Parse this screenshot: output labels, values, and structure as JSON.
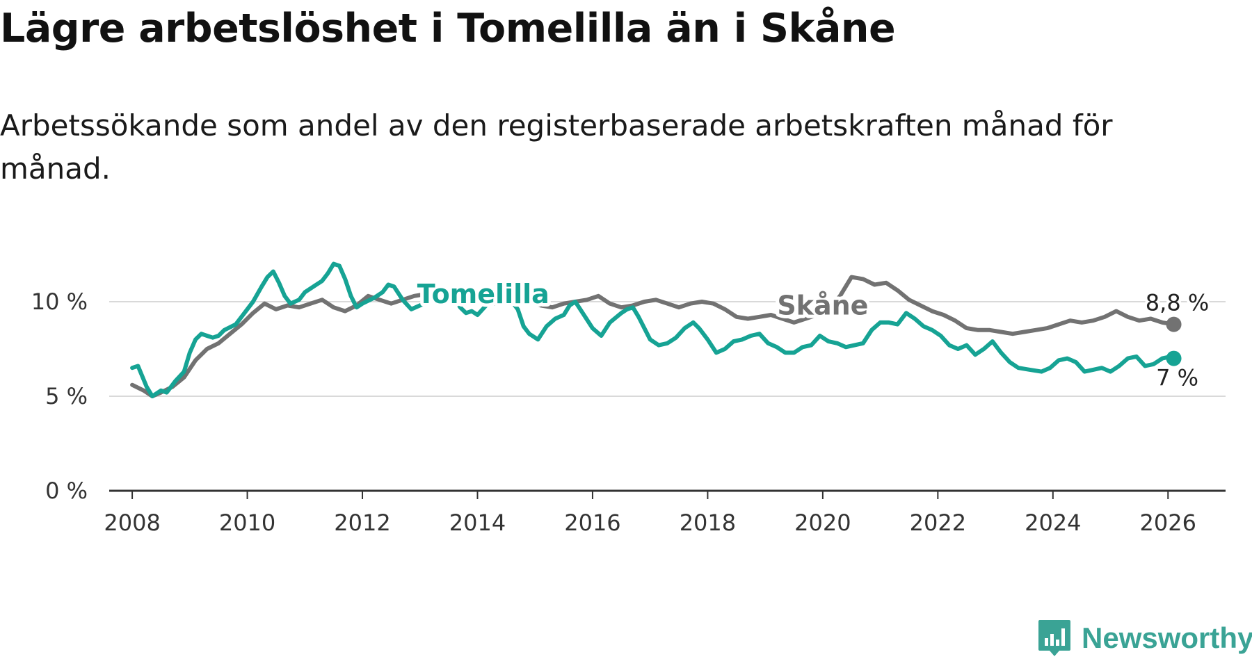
{
  "title": "Lägre arbetslöshet i Tomelilla än i Skåne",
  "subtitle": "Arbetssökande som andel av den registerbaserade arbetskraften månad för månad.",
  "brand": {
    "name": "Newsworthy",
    "color": "#3aa395"
  },
  "chart_data": {
    "type": "line",
    "title": "Lägre arbetslöshet i Tomelilla än i Skåne",
    "xlabel": "",
    "ylabel": "",
    "xlim": [
      2007.6,
      2027.0
    ],
    "ylim": [
      0,
      10
    ],
    "x_ticks": [
      2008,
      2010,
      2012,
      2014,
      2016,
      2018,
      2020,
      2022,
      2024,
      2026
    ],
    "x_tick_labels": [
      "2008",
      "2010",
      "2012",
      "2014",
      "2016",
      "2018",
      "2020",
      "2022",
      "2024",
      "2026"
    ],
    "y_ticks": [
      0,
      5,
      10
    ],
    "y_tick_labels": [
      "0 %",
      "5 %",
      "10 %"
    ],
    "series": [
      {
        "name": "Skåne",
        "label": "Skåne",
        "color": "#727272",
        "end_label": "8,8 %",
        "points": [
          [
            2008.0,
            5.6
          ],
          [
            2008.2,
            5.3
          ],
          [
            2008.35,
            5.0
          ],
          [
            2008.5,
            5.2
          ],
          [
            2008.7,
            5.5
          ],
          [
            2008.9,
            6.0
          ],
          [
            2009.1,
            6.9
          ],
          [
            2009.3,
            7.5
          ],
          [
            2009.5,
            7.8
          ],
          [
            2009.7,
            8.3
          ],
          [
            2009.9,
            8.8
          ],
          [
            2010.1,
            9.4
          ],
          [
            2010.3,
            9.9
          ],
          [
            2010.5,
            9.6
          ],
          [
            2010.7,
            9.8
          ],
          [
            2010.9,
            9.7
          ],
          [
            2011.1,
            9.9
          ],
          [
            2011.3,
            10.1
          ],
          [
            2011.5,
            9.7
          ],
          [
            2011.7,
            9.5
          ],
          [
            2011.9,
            9.8
          ],
          [
            2012.1,
            10.3
          ],
          [
            2012.3,
            10.1
          ],
          [
            2012.5,
            9.9
          ],
          [
            2012.7,
            10.1
          ],
          [
            2012.9,
            10.3
          ],
          [
            2013.1,
            10.4
          ],
          [
            2013.3,
            10.2
          ],
          [
            2013.5,
            10.0
          ],
          [
            2013.7,
            10.2
          ],
          [
            2013.9,
            10.3
          ],
          [
            2014.1,
            10.1
          ],
          [
            2014.3,
            9.9
          ],
          [
            2014.5,
            10.0
          ],
          [
            2014.7,
            10.2
          ],
          [
            2014.9,
            10.0
          ],
          [
            2015.1,
            9.8
          ],
          [
            2015.3,
            9.7
          ],
          [
            2015.5,
            9.9
          ],
          [
            2015.7,
            10.0
          ],
          [
            2015.9,
            10.1
          ],
          [
            2016.1,
            10.3
          ],
          [
            2016.3,
            9.9
          ],
          [
            2016.5,
            9.7
          ],
          [
            2016.7,
            9.8
          ],
          [
            2016.9,
            10.0
          ],
          [
            2017.1,
            10.1
          ],
          [
            2017.3,
            9.9
          ],
          [
            2017.5,
            9.7
          ],
          [
            2017.7,
            9.9
          ],
          [
            2017.9,
            10.0
          ],
          [
            2018.1,
            9.9
          ],
          [
            2018.3,
            9.6
          ],
          [
            2018.5,
            9.2
          ],
          [
            2018.7,
            9.1
          ],
          [
            2018.9,
            9.2
          ],
          [
            2019.1,
            9.3
          ],
          [
            2019.3,
            9.1
          ],
          [
            2019.5,
            8.9
          ],
          [
            2019.7,
            9.1
          ],
          [
            2019.9,
            9.3
          ],
          [
            2020.1,
            9.6
          ],
          [
            2020.3,
            10.3
          ],
          [
            2020.5,
            11.3
          ],
          [
            2020.7,
            11.2
          ],
          [
            2020.9,
            10.9
          ],
          [
            2021.1,
            11.0
          ],
          [
            2021.3,
            10.6
          ],
          [
            2021.5,
            10.1
          ],
          [
            2021.7,
            9.8
          ],
          [
            2021.9,
            9.5
          ],
          [
            2022.1,
            9.3
          ],
          [
            2022.3,
            9.0
          ],
          [
            2022.5,
            8.6
          ],
          [
            2022.7,
            8.5
          ],
          [
            2022.9,
            8.5
          ],
          [
            2023.1,
            8.4
          ],
          [
            2023.3,
            8.3
          ],
          [
            2023.5,
            8.4
          ],
          [
            2023.7,
            8.5
          ],
          [
            2023.9,
            8.6
          ],
          [
            2024.1,
            8.8
          ],
          [
            2024.3,
            9.0
          ],
          [
            2024.5,
            8.9
          ],
          [
            2024.7,
            9.0
          ],
          [
            2024.9,
            9.2
          ],
          [
            2025.1,
            9.5
          ],
          [
            2025.3,
            9.2
          ],
          [
            2025.5,
            9.0
          ],
          [
            2025.7,
            9.1
          ],
          [
            2025.9,
            8.9
          ],
          [
            2026.1,
            8.8
          ]
        ]
      },
      {
        "name": "Tomelilla",
        "label": "Tomelilla",
        "color": "#16a394",
        "end_label": "7 %",
        "points": [
          [
            2008.0,
            6.5
          ],
          [
            2008.1,
            6.6
          ],
          [
            2008.25,
            5.5
          ],
          [
            2008.35,
            5.0
          ],
          [
            2008.5,
            5.3
          ],
          [
            2008.6,
            5.2
          ],
          [
            2008.75,
            5.8
          ],
          [
            2008.9,
            6.3
          ],
          [
            2009.0,
            7.3
          ],
          [
            2009.1,
            8.0
          ],
          [
            2009.2,
            8.3
          ],
          [
            2009.3,
            8.2
          ],
          [
            2009.4,
            8.1
          ],
          [
            2009.5,
            8.2
          ],
          [
            2009.6,
            8.5
          ],
          [
            2009.8,
            8.8
          ],
          [
            2009.95,
            9.4
          ],
          [
            2010.1,
            10.0
          ],
          [
            2010.25,
            10.8
          ],
          [
            2010.35,
            11.3
          ],
          [
            2010.45,
            11.6
          ],
          [
            2010.55,
            11.0
          ],
          [
            2010.65,
            10.3
          ],
          [
            2010.75,
            9.9
          ],
          [
            2010.9,
            10.1
          ],
          [
            2011.0,
            10.5
          ],
          [
            2011.2,
            10.9
          ],
          [
            2011.3,
            11.1
          ],
          [
            2011.4,
            11.5
          ],
          [
            2011.5,
            12.0
          ],
          [
            2011.6,
            11.9
          ],
          [
            2011.7,
            11.2
          ],
          [
            2011.8,
            10.3
          ],
          [
            2011.9,
            9.7
          ],
          [
            2012.0,
            9.9
          ],
          [
            2012.2,
            10.2
          ],
          [
            2012.35,
            10.5
          ],
          [
            2012.45,
            10.9
          ],
          [
            2012.55,
            10.8
          ],
          [
            2012.7,
            10.1
          ],
          [
            2012.85,
            9.6
          ],
          [
            2013.0,
            9.8
          ],
          [
            2013.15,
            10.0
          ],
          [
            2013.3,
            10.3
          ],
          [
            2013.45,
            10.6
          ],
          [
            2013.55,
            10.4
          ],
          [
            2013.7,
            9.7
          ],
          [
            2013.8,
            9.4
          ],
          [
            2013.9,
            9.5
          ],
          [
            2014.0,
            9.3
          ],
          [
            2014.15,
            9.8
          ],
          [
            2014.3,
            10.2
          ],
          [
            2014.45,
            10.5
          ],
          [
            2014.55,
            10.2
          ],
          [
            2014.7,
            9.6
          ],
          [
            2014.8,
            8.7
          ],
          [
            2014.9,
            8.3
          ],
          [
            2015.05,
            8.0
          ],
          [
            2015.2,
            8.7
          ],
          [
            2015.35,
            9.1
          ],
          [
            2015.5,
            9.3
          ],
          [
            2015.6,
            9.8
          ],
          [
            2015.7,
            10.0
          ],
          [
            2015.85,
            9.3
          ],
          [
            2016.0,
            8.6
          ],
          [
            2016.15,
            8.2
          ],
          [
            2016.3,
            8.9
          ],
          [
            2016.5,
            9.4
          ],
          [
            2016.6,
            9.6
          ],
          [
            2016.7,
            9.7
          ],
          [
            2016.8,
            9.2
          ],
          [
            2016.9,
            8.6
          ],
          [
            2017.0,
            8.0
          ],
          [
            2017.15,
            7.7
          ],
          [
            2017.3,
            7.8
          ],
          [
            2017.45,
            8.1
          ],
          [
            2017.6,
            8.6
          ],
          [
            2017.75,
            8.9
          ],
          [
            2017.85,
            8.6
          ],
          [
            2018.0,
            8.0
          ],
          [
            2018.15,
            7.3
          ],
          [
            2018.3,
            7.5
          ],
          [
            2018.45,
            7.9
          ],
          [
            2018.6,
            8.0
          ],
          [
            2018.75,
            8.2
          ],
          [
            2018.9,
            8.3
          ],
          [
            2019.05,
            7.8
          ],
          [
            2019.2,
            7.6
          ],
          [
            2019.35,
            7.3
          ],
          [
            2019.5,
            7.3
          ],
          [
            2019.65,
            7.6
          ],
          [
            2019.8,
            7.7
          ],
          [
            2019.95,
            8.2
          ],
          [
            2020.1,
            7.9
          ],
          [
            2020.25,
            7.8
          ],
          [
            2020.4,
            7.6
          ],
          [
            2020.55,
            7.7
          ],
          [
            2020.7,
            7.8
          ],
          [
            2020.85,
            8.5
          ],
          [
            2021.0,
            8.9
          ],
          [
            2021.15,
            8.9
          ],
          [
            2021.3,
            8.8
          ],
          [
            2021.45,
            9.4
          ],
          [
            2021.6,
            9.1
          ],
          [
            2021.75,
            8.7
          ],
          [
            2021.9,
            8.5
          ],
          [
            2022.05,
            8.2
          ],
          [
            2022.2,
            7.7
          ],
          [
            2022.35,
            7.5
          ],
          [
            2022.5,
            7.7
          ],
          [
            2022.65,
            7.2
          ],
          [
            2022.8,
            7.5
          ],
          [
            2022.95,
            7.9
          ],
          [
            2023.1,
            7.3
          ],
          [
            2023.25,
            6.8
          ],
          [
            2023.4,
            6.5
          ],
          [
            2023.6,
            6.4
          ],
          [
            2023.8,
            6.3
          ],
          [
            2023.95,
            6.5
          ],
          [
            2024.1,
            6.9
          ],
          [
            2024.25,
            7.0
          ],
          [
            2024.4,
            6.8
          ],
          [
            2024.55,
            6.3
          ],
          [
            2024.7,
            6.4
          ],
          [
            2024.85,
            6.5
          ],
          [
            2025.0,
            6.3
          ],
          [
            2025.15,
            6.6
          ],
          [
            2025.3,
            7.0
          ],
          [
            2025.45,
            7.1
          ],
          [
            2025.6,
            6.6
          ],
          [
            2025.75,
            6.7
          ],
          [
            2025.9,
            7.0
          ],
          [
            2026.05,
            7.1
          ],
          [
            2026.1,
            7.0
          ]
        ]
      }
    ]
  }
}
